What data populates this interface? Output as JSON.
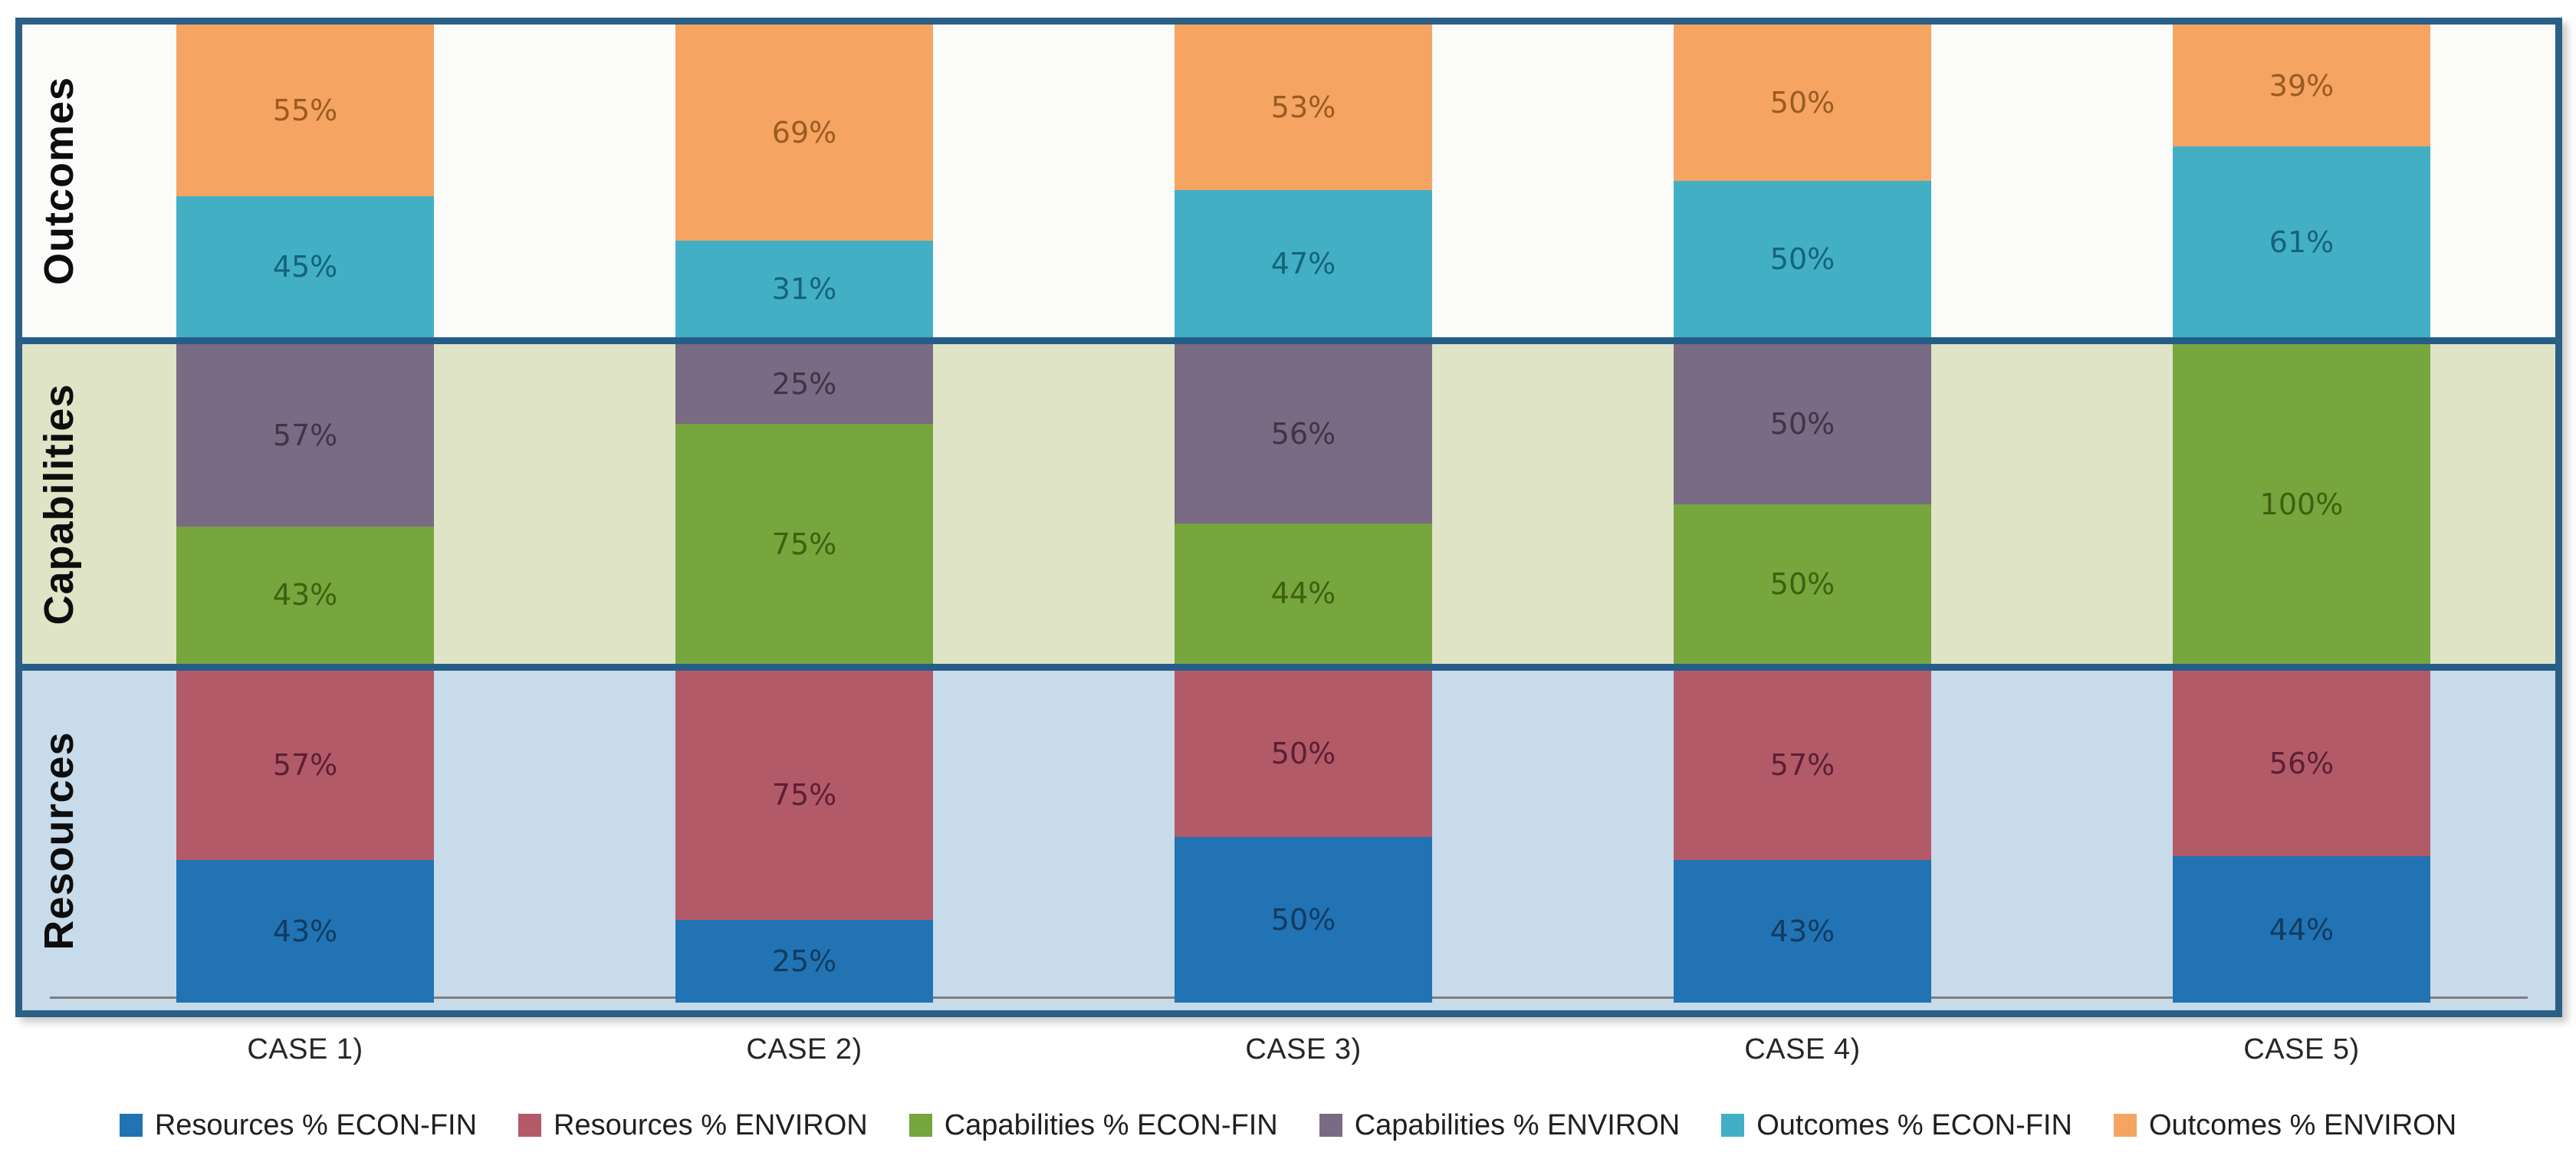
{
  "chart_data": {
    "type": "bar",
    "subtype": "stacked-percentage-banded",
    "title": "",
    "categories": [
      "CASE 1)",
      "CASE 2)",
      "CASE 3)",
      "CASE 4)",
      "CASE 5)"
    ],
    "value_suffix": "%",
    "grid": false,
    "legend_position": "bottom",
    "frame_color": "#2B5F86",
    "separator_color": "#245E88",
    "axis_line_color": "#7f7f7f",
    "bands": [
      {
        "label": "Outcomes",
        "background": "#FBFCFA",
        "segments": [
          {
            "name": "Outcomes % ENVIRON",
            "color": "#F5A462",
            "label_color": "#9A5B21",
            "values": [
              55,
              69,
              53,
              50,
              39
            ]
          },
          {
            "name": "Outcomes % ECON-FIN",
            "color": "#43AFC5",
            "label_color": "#14647A",
            "values": [
              45,
              31,
              47,
              50,
              61
            ]
          }
        ]
      },
      {
        "label": "Capabilities",
        "background": "#DFE4C6",
        "segments": [
          {
            "name": "Capabilities % ENVIRON",
            "color": "#796B83",
            "label_color": "#3E3547",
            "values": [
              57,
              25,
              56,
              50,
              0
            ]
          },
          {
            "name": "Capabilities % ECON-FIN",
            "color": "#77A53E",
            "label_color": "#3F610E",
            "values": [
              43,
              75,
              44,
              50,
              100
            ]
          }
        ]
      },
      {
        "label": "Resources",
        "background": "#C8DBEB",
        "segments": [
          {
            "name": "Resources % ENVIRON",
            "color": "#B35A69",
            "label_color": "#5C1F33",
            "values": [
              57,
              75,
              50,
              57,
              56
            ]
          },
          {
            "name": "Resources % ECON-FIN",
            "color": "#2173B4",
            "label_color": "#113C60",
            "values": [
              43,
              25,
              50,
              43,
              44
            ]
          }
        ]
      }
    ],
    "legend": [
      {
        "label": "Resources % ECON-FIN",
        "color": "#2173B4"
      },
      {
        "label": "Resources % ENVIRON",
        "color": "#B35A69"
      },
      {
        "label": "Capabilities % ECON-FIN",
        "color": "#77A53E"
      },
      {
        "label": "Capabilities % ENVIRON",
        "color": "#796B83"
      },
      {
        "label": "Outcomes % ECON-FIN",
        "color": "#43AFC5"
      },
      {
        "label": "Outcomes % ENVIRON",
        "color": "#F5A462"
      }
    ]
  }
}
